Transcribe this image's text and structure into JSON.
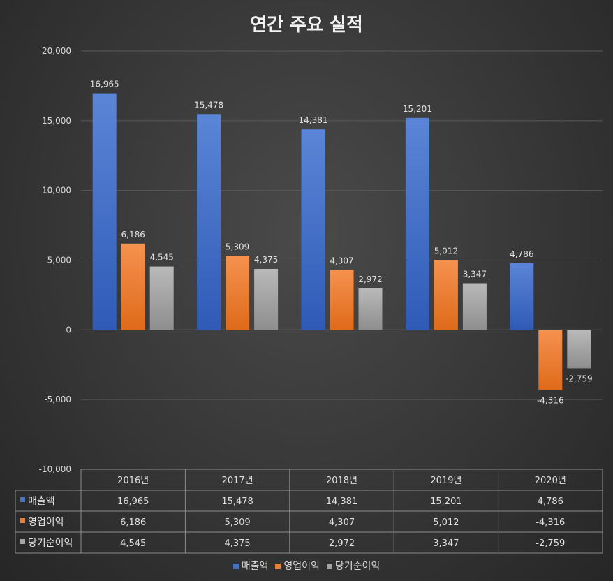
{
  "chart_data": {
    "type": "bar",
    "title": "연간 주요 실적",
    "categories": [
      "2016년",
      "2017년",
      "2018년",
      "2019년",
      "2020년"
    ],
    "series": [
      {
        "name": "매출액",
        "color": "#4472c4",
        "values": [
          16965,
          15478,
          14381,
          15201,
          4786
        ]
      },
      {
        "name": "영업이익",
        "color": "#ed7d31",
        "values": [
          6186,
          5309,
          4307,
          5012,
          -4316
        ]
      },
      {
        "name": "당기순이익",
        "color": "#a5a5a5",
        "values": [
          4545,
          4375,
          2972,
          3347,
          -2759
        ]
      }
    ],
    "ylim": [
      -10000,
      20000
    ],
    "yticks": [
      20000,
      15000,
      10000,
      5000,
      0,
      -5000,
      -10000
    ],
    "ytick_labels": [
      "20,000",
      "15,000",
      "10,000",
      "5,000",
      "0",
      "-5,000",
      "-10,000"
    ],
    "data_labels": [
      [
        "16,965",
        "15,478",
        "14,381",
        "15,201",
        "4,786"
      ],
      [
        "6,186",
        "5,309",
        "4,307",
        "5,012",
        "-4,316"
      ],
      [
        "4,545",
        "4,375",
        "2,972",
        "3,347",
        "-2,759"
      ]
    ],
    "legend_position": "bottom",
    "data_table": true
  }
}
